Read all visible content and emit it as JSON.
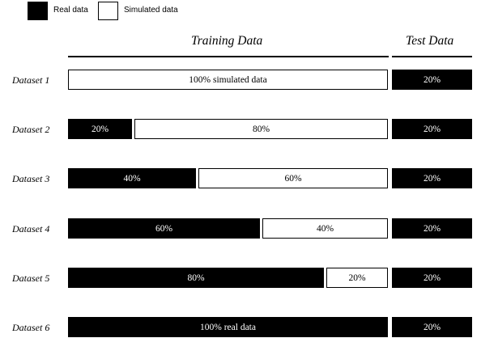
{
  "legend": {
    "real_label": "Real data",
    "simulated_label": "Simulated data",
    "real_color": "#000000",
    "simulated_color": "#ffffff"
  },
  "headers": {
    "training": "Training Data",
    "test": "Test Data"
  },
  "rows": [
    {
      "label": "Dataset 1",
      "real": 0,
      "simulated": 100,
      "real_text": "",
      "simulated_text": "100% simulated data",
      "test_text": "20%"
    },
    {
      "label": "Dataset 2",
      "real": 20,
      "simulated": 80,
      "real_text": "20%",
      "simulated_text": "80%",
      "test_text": "20%"
    },
    {
      "label": "Dataset 3",
      "real": 40,
      "simulated": 60,
      "real_text": "40%",
      "simulated_text": "60%",
      "test_text": "20%"
    },
    {
      "label": "Dataset 4",
      "real": 60,
      "simulated": 40,
      "real_text": "60%",
      "simulated_text": "40%",
      "test_text": "20%"
    },
    {
      "label": "Dataset 5",
      "real": 80,
      "simulated": 20,
      "real_text": "80%",
      "simulated_text": "20%",
      "test_text": "20%"
    },
    {
      "label": "Dataset 6",
      "real": 100,
      "simulated": 0,
      "real_text": "100% real data",
      "simulated_text": "",
      "test_text": "20%"
    }
  ]
}
